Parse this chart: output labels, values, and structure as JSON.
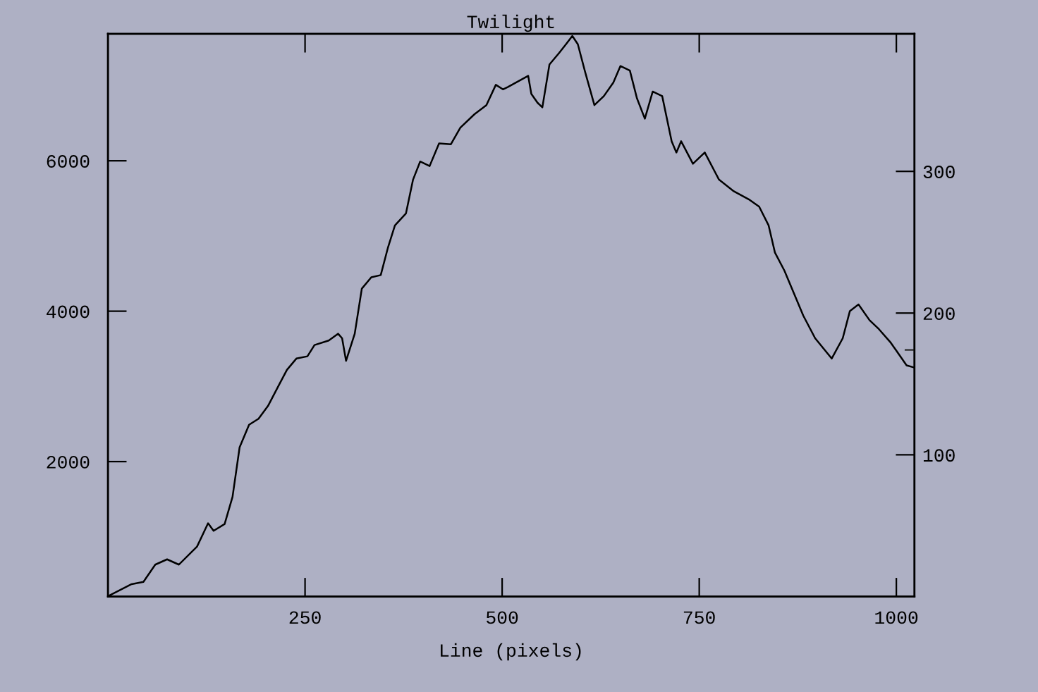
{
  "chart_data": {
    "type": "line",
    "title": "Twilight",
    "xlabel": "Line (pixels)",
    "x": [
      0,
      30,
      45,
      60,
      75,
      90,
      113,
      127,
      134,
      148,
      158,
      167,
      179,
      191,
      203,
      215,
      227,
      239,
      253,
      262,
      280,
      292,
      297,
      302,
      313,
      322,
      334,
      346,
      355,
      364,
      378,
      387,
      396,
      408,
      420,
      435,
      447,
      465,
      480,
      492,
      501,
      507,
      533,
      537,
      545,
      551,
      560,
      572,
      581,
      589,
      596,
      605,
      617,
      629,
      641,
      650,
      662,
      671,
      681,
      691,
      703,
      715,
      721,
      727,
      742,
      757,
      775,
      793,
      814,
      826,
      838,
      846,
      858,
      870,
      882,
      897,
      918,
      932,
      941,
      952,
      966,
      978,
      993,
      1013,
      1023
    ],
    "values": [
      210,
      370,
      400,
      630,
      700,
      630,
      870,
      1180,
      1080,
      1170,
      1530,
      2190,
      2490,
      2570,
      2740,
      2980,
      3220,
      3370,
      3400,
      3550,
      3610,
      3700,
      3640,
      3340,
      3700,
      4300,
      4450,
      4480,
      4840,
      5140,
      5300,
      5750,
      5990,
      5930,
      6230,
      6220,
      6440,
      6620,
      6740,
      7010,
      6950,
      6980,
      7130,
      6890,
      6770,
      6710,
      7280,
      7430,
      7550,
      7660,
      7550,
      7190,
      6740,
      6860,
      7040,
      7260,
      7200,
      6830,
      6560,
      6920,
      6860,
      6260,
      6110,
      6260,
      5960,
      6110,
      5750,
      5600,
      5480,
      5390,
      5140,
      4780,
      4540,
      4240,
      3940,
      3640,
      3370,
      3640,
      4000,
      4090,
      3880,
      3760,
      3580,
      3280,
      3250
    ],
    "color": "#000000",
    "xlim": [
      0,
      1023
    ],
    "xticks": [
      250,
      500,
      750,
      1000
    ],
    "ylim": [
      206,
      7687
    ],
    "yticks": [
      2000,
      4000,
      6000
    ],
    "y2lim": [
      0,
      397
    ],
    "y2ticks": [
      100,
      200,
      300,
      {
        "value": 174,
        "label": null
      }
    ]
  }
}
